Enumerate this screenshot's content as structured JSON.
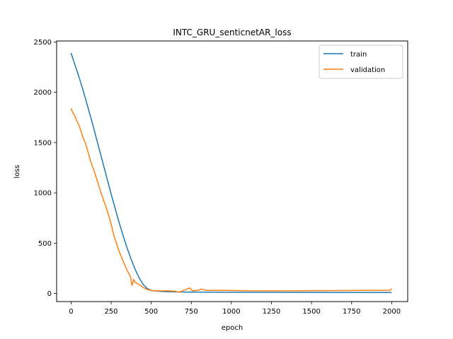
{
  "chart_data": {
    "type": "line",
    "title": "INTC_GRU_senticnetAR_loss",
    "xlabel": "epoch",
    "ylabel": "loss",
    "xlim": [
      -90,
      2100
    ],
    "ylim": [
      -80,
      2510
    ],
    "xticks": [
      0,
      250,
      500,
      750,
      1000,
      1250,
      1500,
      1750,
      2000
    ],
    "yticks": [
      0,
      500,
      1000,
      1500,
      2000,
      2500
    ],
    "grid": false,
    "legend_position": "top-right",
    "series": [
      {
        "name": "train",
        "color": "#1f77b4",
        "points": [
          [
            0,
            2390
          ],
          [
            25,
            2270
          ],
          [
            50,
            2150
          ],
          [
            75,
            2020
          ],
          [
            100,
            1880
          ],
          [
            125,
            1740
          ],
          [
            150,
            1590
          ],
          [
            175,
            1440
          ],
          [
            200,
            1290
          ],
          [
            225,
            1140
          ],
          [
            250,
            990
          ],
          [
            275,
            845
          ],
          [
            300,
            705
          ],
          [
            325,
            575
          ],
          [
            350,
            450
          ],
          [
            375,
            340
          ],
          [
            400,
            240
          ],
          [
            425,
            155
          ],
          [
            450,
            90
          ],
          [
            475,
            50
          ],
          [
            500,
            30
          ],
          [
            550,
            22
          ],
          [
            600,
            18
          ],
          [
            700,
            15
          ],
          [
            800,
            14
          ],
          [
            1000,
            13
          ],
          [
            1250,
            12
          ],
          [
            1500,
            11
          ],
          [
            1750,
            10
          ],
          [
            2000,
            10
          ]
        ]
      },
      {
        "name": "validation",
        "color": "#ff7f0e",
        "points": [
          [
            0,
            1840
          ],
          [
            10,
            1800
          ],
          [
            25,
            1760
          ],
          [
            40,
            1700
          ],
          [
            50,
            1670
          ],
          [
            75,
            1550
          ],
          [
            90,
            1490
          ],
          [
            100,
            1440
          ],
          [
            125,
            1300
          ],
          [
            150,
            1190
          ],
          [
            175,
            1060
          ],
          [
            200,
            940
          ],
          [
            225,
            830
          ],
          [
            250,
            690
          ],
          [
            270,
            560
          ],
          [
            300,
            420
          ],
          [
            325,
            320
          ],
          [
            350,
            230
          ],
          [
            370,
            170
          ],
          [
            380,
            80
          ],
          [
            390,
            140
          ],
          [
            400,
            110
          ],
          [
            425,
            90
          ],
          [
            450,
            60
          ],
          [
            475,
            40
          ],
          [
            500,
            30
          ],
          [
            550,
            25
          ],
          [
            600,
            28
          ],
          [
            650,
            22
          ],
          [
            675,
            12
          ],
          [
            700,
            30
          ],
          [
            740,
            55
          ],
          [
            760,
            25
          ],
          [
            800,
            35
          ],
          [
            810,
            45
          ],
          [
            850,
            30
          ],
          [
            900,
            32
          ],
          [
            1000,
            30
          ],
          [
            1100,
            28
          ],
          [
            1250,
            27
          ],
          [
            1500,
            28
          ],
          [
            1750,
            30
          ],
          [
            1990,
            32
          ],
          [
            2000,
            50
          ]
        ]
      }
    ]
  }
}
